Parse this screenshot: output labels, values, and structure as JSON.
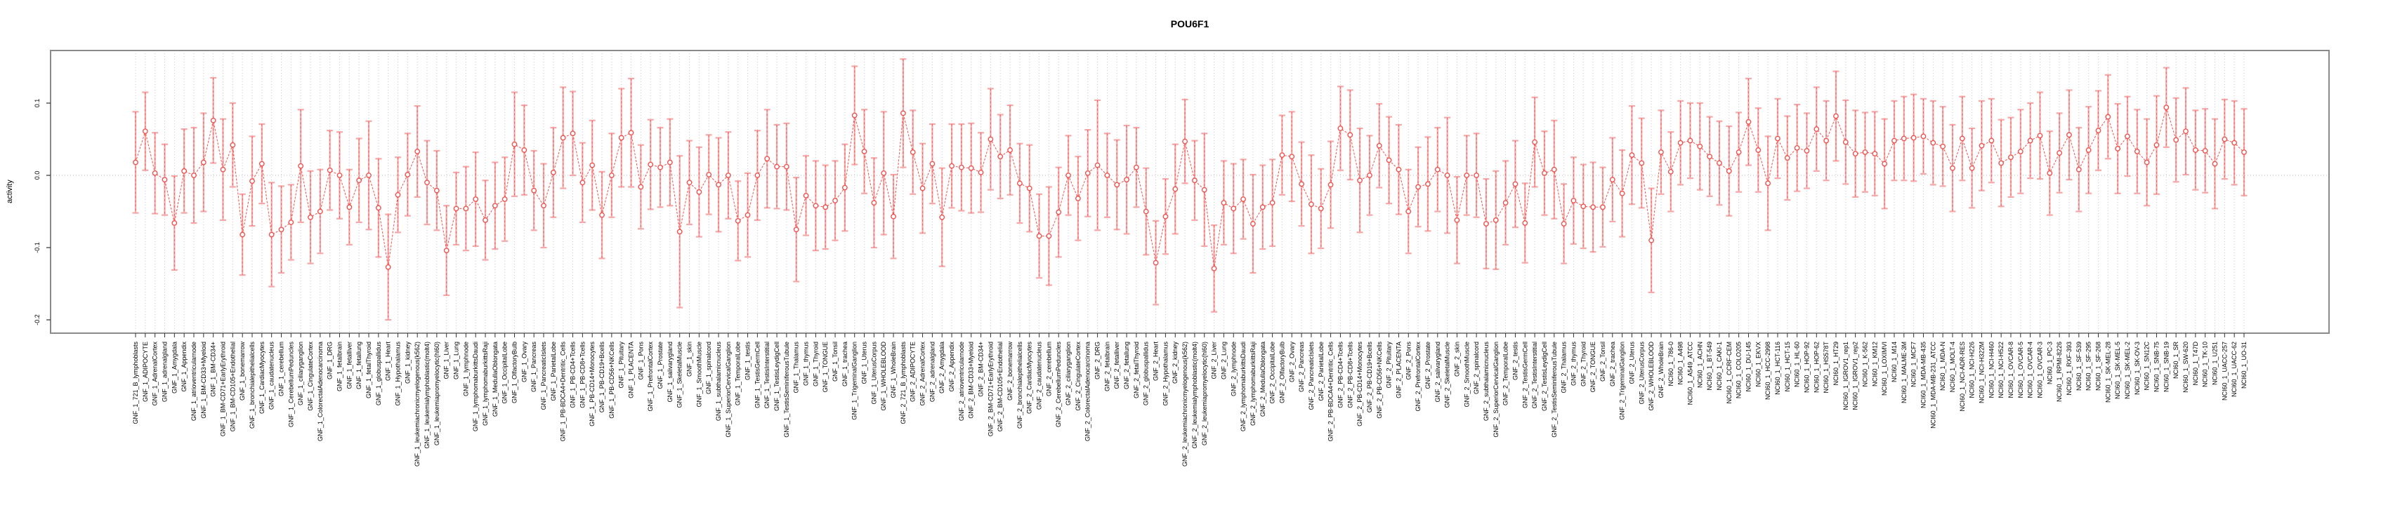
{
  "page": {
    "title": "POU6F1"
  },
  "axis": {
    "ylabel": "activity",
    "ytick_labels": [
      "0.1",
      "0.0",
      "-0.1",
      "-0.2"
    ]
  },
  "chart_data": {
    "type": "scatter",
    "title": "POU6F1",
    "xlabel": "",
    "ylabel": "activity",
    "ylim": [
      -0.218,
      0.173
    ],
    "yticks": [
      0.1,
      0.0,
      -0.1,
      -0.2
    ],
    "ytick_labels": [
      "0.1",
      "0.0",
      "-0.1",
      "-0.2"
    ],
    "grid": "dotted vertical line at every category; dotted horizontal line at y=0",
    "legend_position": "none",
    "marker": "open-circle",
    "line_style": "dashed-connecting-line",
    "error_bars": true,
    "colors": {
      "point": "#f0524f",
      "errorbar": "#f6a8a8",
      "grid": "#c8c8c8",
      "border": "#8a8a8a",
      "tick": "#333333",
      "text": "#000000",
      "background": "#ffffff"
    },
    "categories": [
      "GNF_1_721_B_lymphoblasts",
      "GNF_1_ADIPOCYTE",
      "GNF_1_AdrenalCortex",
      "GNF_1_adrenalgland",
      "GNF_1_Amygdala",
      "GNF_1_Appendix",
      "GNF_1_atrioventricularnode",
      "GNF_1_BM-CD33+Myeloid",
      "GNF_1_BM-CD34+",
      "GNF_1_BM-CD71+EarlyErythroid",
      "GNF_1_BM-CD105+Endothelial",
      "GNF_1_bonemarrow",
      "GNF_1_bronchialepithelialcells",
      "GNF_1_CardiacMyocytes",
      "GNF_1_caudatenucleus",
      "GNF_1_cerebellum",
      "GNF_1_CerebellumPeduncles",
      "GNF_1_ciliaryganglion",
      "GNF_1_CingulateCortex",
      "GNF_1_ColorectalAdenocarcinoma",
      "GNF_1_DRG",
      "GNF_1_fetalbrain",
      "GNF_1_fetalliver",
      "GNF_1_fetallung",
      "GNF_1_fetalThyroid",
      "GNF_1_globuspallidus",
      "GNF_1_Heart",
      "GNF_1_Hypothalamus",
      "GNF_1_kidney",
      "GNF_1_leukemiachronicmyelogenous(k562)",
      "GNF_1_leukemialymphoblastic(molt4)",
      "GNF_1_leukemiapromyelocytic(hl60)",
      "GNF_1_Liver",
      "GNF_1_Lung",
      "GNF_1_lymphnode",
      "GNF_1_lymphomaburkittsDaudi",
      "GNF_1_lymphomaburkittsRaji",
      "GNF_1_MedullaOblongata",
      "GNF_1_OccipitalLobe",
      "GNF_1_OlfactoryBulb",
      "GNF_1_Ovary",
      "GNF_1_Pancreas",
      "GNF_1_PancreaticIslets",
      "GNF_1_ParietalLobe",
      "GNF_1_PB-BDCA4+Dentritic_Cells",
      "GNF_1_PB-CD4+Tcells",
      "GNF_1_PB-CD8+Tcells",
      "GNF_1_PB-CD14+Monocytes",
      "GNF_1_PB-CD19+Bcells",
      "GNF_1_PB-CD56+NKCells",
      "GNF_1_Pituitary",
      "GNF_1_PLACENTA",
      "GNF_1_Pons",
      "GNF_1_PrefrontalCortex",
      "GNF_1_Prostate",
      "GNF_1_salivarygland",
      "GNF_1_SkeletalMuscle",
      "GNF_1_skin",
      "GNF_1_SmoothMuscle",
      "GNF_1_spinalcord",
      "GNF_1_subthalamicnucleus",
      "GNF_1_SuperiorCervicalGanglion",
      "GNF_1_TemporalLobe",
      "GNF_1_testis",
      "GNF_1_TestisGermCell",
      "GNF_1_TestisInterstitial",
      "GNF_1_TestisLeydigCell",
      "GNF_1_TestisSeminiferousTubule",
      "GNF_1_Thalamus",
      "GNF_1_thymus",
      "GNF_1_Thyroid",
      "GNF_1_TONGUE",
      "GNF_1_Tonsil",
      "GNF_1_trachea",
      "GNF_1_TrigeminalGanglion",
      "GNF_1_Uterus",
      "GNF_1_UterusCorpus",
      "GNF_1_WHOLEBLOOD",
      "GNF_1_WholeBrain",
      "GNF_2_721_B_lymphoblasts",
      "GNF_2_ADIPOCYTE",
      "GNF_2_AdrenalCortex",
      "GNF_2_adrenalgland",
      "GNF_2_Amygdala",
      "GNF_2_Appendix",
      "GNF_2_atrioventricularnode",
      "GNF_2_BM-CD33+Myeloid",
      "GNF_2_BM-CD34+",
      "GNF_2_BM-CD71+EarlyErythroid",
      "GNF_2_BM-CD105+Endothelial",
      "GNF_2_bonemarrow",
      "GNF_2_bronchialepithelialcells",
      "GNF_2_CardiacMyocytes",
      "GNF_2_caudatenucleus",
      "GNF_2_cerebellum",
      "GNF_2_CerebellumPeduncles",
      "GNF_2_ciliaryganglion",
      "GNF_2_CingulateCortex",
      "GNF_2_ColorectalAdenocarcinoma",
      "GNF_2_DRG",
      "GNF_2_fetalbrain",
      "GNF_2_fetalliver",
      "GNF_2_fetallung",
      "GNF_2_fetalThyroid",
      "GNF_2_globuspallidus",
      "GNF_2_Heart",
      "GNF_2_Hypothalamus",
      "GNF_2_kidney",
      "GNF_2_leukemiachronicmyelogenous(k562)",
      "GNF_2_leukemialymphoblastic(molt4)",
      "GNF_2_leukemiapromyelocytic(hl60)",
      "GNF_2_Liver",
      "GNF_2_Lung",
      "GNF_2_lymphnode",
      "GNF_2_lymphomaburkittsDaudi",
      "GNF_2_lymphomaburkittsRaji",
      "GNF_2_MedullaOblongata",
      "GNF_2_OccipitalLobe",
      "GNF_2_OlfactoryBulb",
      "GNF_2_Ovary",
      "GNF_2_Pancreas",
      "GNF_2_PancreaticIslets",
      "GNF_2_ParietalLobe",
      "GNF_2_PB-BDCA4+Dentritic_Cells",
      "GNF_2_PB-CD4+Tcells",
      "GNF_2_PB-CD8+Tcells",
      "GNF_2_PB-CD14+Monocytes",
      "GNF_2_PB-CD19+Bcells",
      "GNF_2_PB-CD56+NKCells",
      "GNF_2_Pituitary",
      "GNF_2_PLACENTA",
      "GNF_2_Pons",
      "GNF_2_PrefrontalCortex",
      "GNF_2_Prostate",
      "GNF_2_salivarygland",
      "GNF_2_SkeletalMuscle",
      "GNF_2_skin",
      "GNF_2_SmoothMuscle",
      "GNF_2_spinalcord",
      "GNF_2_subthalamicnucleus",
      "GNF_2_SuperiorCervicalGanglion",
      "GNF_2_TemporalLobe",
      "GNF_2_testis",
      "GNF_2_TestisGermCell",
      "GNF_2_TestisInterstitial",
      "GNF_2_TestisLeydigCell",
      "GNF_2_TestisSeminiferousTubule",
      "GNF_2_Thalamus",
      "GNF_2_thymus",
      "GNF_2_Thyroid",
      "GNF_2_TONGUE",
      "GNF_2_Tonsil",
      "GNF_2_trachea",
      "GNF_2_TrigeminalGanglion",
      "GNF_2_Uterus",
      "GNF_2_UterusCorpus",
      "GNF_2_WHOLEBLOOD",
      "GNF_2_WholeBrain",
      "NCI60_1_786-0",
      "NCI60_1_A498",
      "NCI60_1_A549_ATCC",
      "NCI60_1_ACHN",
      "NCI60_1_BT-549",
      "NCI60_1_CAKI-1",
      "NCI60_1_CCRF-CEM",
      "NCI60_1_COLO205",
      "NCI60_1_DU-145",
      "NCI60_1_EKVX",
      "NCI60_1_HCC-2998",
      "NCI60_1_HCT-116",
      "NCI60_1_HCT-15",
      "NCI60_1_HL-60",
      "NCI60_1_HOP-92",
      "NCI60_1_HOP-62",
      "NCI60_1_HS578T",
      "NCI60_1_HT29",
      "NCI60_1_IGROV1_rep1",
      "NCI60_1_IGROV1_rep2",
      "NCI60_1_K-562",
      "NCI60_1_KM12",
      "NCI60_1_LOXIMVI",
      "NCI60_1_M14",
      "NCI60_1_MALME-3M",
      "NCI60_1_MCF7",
      "NCI60_1_MDA-MB-435",
      "NCI60_1_MDA-MB-231_ATCC",
      "NCI60_1_MDA-N",
      "NCI60_1_MOLT-4",
      "NCI60_1_NCI-ADR-RES",
      "NCI60_1_NCI-H226",
      "NCI60_1_NCI-H322M",
      "NCI60_1_NCI-H460",
      "NCI60_1_NCI-H522",
      "NCI60_1_OVCAR-8",
      "NCI60_1_OVCAR-5",
      "NCI60_1_OVCAR-4",
      "NCI60_1_OVCAR-3",
      "NCI60_1_PC-3",
      "NCI60_1_RPMI-8226",
      "NCI60_1_RXF-393",
      "NCI60_1_SF-539",
      "NCI60_1_SF-295",
      "NCI60_1_SF-268",
      "NCI60_1_SK-MEL-28",
      "NCI60_1_SK-MEL-5",
      "NCI60_1_SK-MEL-2",
      "NCI60_1_SK-OV-3",
      "NCI60_1_SN12C",
      "NCI60_1_SNB-75",
      "NCI60_1_SNB-19",
      "NCI60_1_SR",
      "NCI60_1_SW-620",
      "NCI60_1_T47D",
      "NCI60_1_TK-10",
      "NCI60_1_U251",
      "NCI60_1_UACC-257",
      "NCI60_1_UACC-62",
      "NCI60_1_UO-31"
    ],
    "values": [
      0.018,
      0.061,
      0.003,
      -0.006,
      -0.066,
      0.006,
      0.0,
      0.018,
      0.076,
      0.008,
      0.042,
      -0.082,
      -0.008,
      0.016,
      -0.082,
      -0.075,
      -0.065,
      0.013,
      -0.058,
      -0.05,
      0.007,
      0.0,
      -0.044,
      -0.007,
      0.0,
      -0.045,
      -0.127,
      -0.027,
      0.001,
      0.033,
      -0.01,
      -0.021,
      -0.104,
      -0.046,
      -0.046,
      -0.033,
      -0.062,
      -0.042,
      -0.033,
      0.043,
      0.035,
      -0.021,
      -0.042,
      0.004,
      0.052,
      0.058,
      -0.01,
      0.014,
      -0.055,
      0.0,
      0.052,
      0.059,
      -0.016,
      0.015,
      0.011,
      0.018,
      -0.078,
      -0.01,
      -0.023,
      0.001,
      -0.013,
      0.0,
      -0.063,
      -0.055,
      0.0,
      0.023,
      0.012,
      0.012,
      -0.075,
      -0.028,
      -0.042,
      -0.044,
      -0.035,
      -0.017,
      0.083,
      0.033,
      -0.038,
      0.003,
      -0.057,
      0.086,
      0.032,
      -0.018,
      0.016,
      -0.058,
      0.013,
      0.011,
      0.01,
      0.004,
      0.05,
      0.026,
      0.035,
      -0.011,
      -0.018,
      -0.084,
      -0.084,
      -0.051,
      0.0,
      -0.032,
      0.003,
      0.014,
      0.0,
      -0.013,
      -0.006,
      0.011,
      -0.05,
      -0.121,
      -0.057,
      -0.019,
      0.047,
      -0.007,
      -0.02,
      -0.129,
      -0.038,
      -0.046,
      -0.033,
      -0.067,
      -0.044,
      -0.038,
      0.028,
      0.026,
      -0.012,
      -0.04,
      -0.046,
      -0.013,
      0.065,
      0.056,
      -0.007,
      0.0,
      0.041,
      0.021,
      0.008,
      -0.05,
      -0.016,
      -0.012,
      0.008,
      0.0,
      -0.062,
      0.0,
      0.0,
      -0.067,
      -0.062,
      -0.038,
      -0.012,
      -0.066,
      0.046,
      0.003,
      0.008,
      -0.067,
      -0.035,
      -0.043,
      -0.044,
      -0.044,
      -0.006,
      -0.025,
      0.028,
      0.017,
      -0.09,
      0.032,
      0.005,
      0.045,
      0.048,
      0.04,
      0.026,
      0.017,
      0.006,
      0.032,
      0.074,
      0.035,
      -0.011,
      0.051,
      0.024,
      0.038,
      0.034,
      0.064,
      0.048,
      0.082,
      0.046,
      0.03,
      0.032,
      0.03,
      0.016,
      0.048,
      0.051,
      0.052,
      0.054,
      0.045,
      0.04,
      0.01,
      0.051,
      0.01,
      0.041,
      0.048,
      0.017,
      0.025,
      0.033,
      0.048,
      0.055,
      0.003,
      0.031,
      0.056,
      0.008,
      0.035,
      0.062,
      0.081,
      0.037,
      0.054,
      0.033,
      0.018,
      0.042,
      0.094,
      0.049,
      0.061,
      0.035,
      0.034,
      0.016,
      0.05,
      0.045,
      0.032
    ],
    "errors": [
      0.07,
      0.054,
      0.056,
      0.049,
      0.065,
      0.058,
      0.066,
      0.068,
      0.059,
      0.07,
      0.058,
      0.056,
      0.062,
      0.055,
      0.072,
      0.06,
      0.052,
      0.078,
      0.064,
      0.058,
      0.055,
      0.06,
      0.052,
      0.058,
      0.075,
      0.068,
      0.073,
      0.052,
      0.057,
      0.063,
      0.058,
      0.055,
      0.062,
      0.05,
      0.058,
      0.065,
      0.055,
      0.06,
      0.058,
      0.072,
      0.062,
      0.055,
      0.058,
      0.062,
      0.07,
      0.058,
      0.055,
      0.062,
      0.06,
      0.058,
      0.068,
      0.075,
      0.058,
      0.062,
      0.055,
      0.06,
      0.105,
      0.058,
      0.062,
      0.055,
      0.065,
      0.06,
      0.055,
      0.058,
      0.062,
      0.068,
      0.058,
      0.06,
      0.072,
      0.055,
      0.062,
      0.058,
      0.055,
      0.06,
      0.068,
      0.058,
      0.062,
      0.085,
      0.058,
      0.075,
      0.058,
      0.062,
      0.055,
      0.068,
      0.058,
      0.06,
      0.062,
      0.055,
      0.07,
      0.058,
      0.062,
      0.055,
      0.06,
      0.058,
      0.068,
      0.062,
      0.055,
      0.058,
      0.06,
      0.09,
      0.058,
      0.062,
      0.075,
      0.055,
      0.06,
      0.058,
      0.052,
      0.062,
      0.058,
      0.055,
      0.078,
      0.06,
      0.058,
      0.062,
      0.055,
      0.068,
      0.058,
      0.06,
      0.055,
      0.062,
      0.058,
      0.068,
      0.055,
      0.06,
      0.058,
      0.062,
      0.072,
      0.055,
      0.058,
      0.06,
      0.062,
      0.058,
      0.055,
      0.065,
      0.058,
      0.08,
      0.06,
      0.055,
      0.058,
      0.062,
      0.068,
      0.058,
      0.06,
      0.055,
      0.062,
      0.058,
      0.068,
      0.055,
      0.06,
      0.058,
      0.062,
      0.055,
      0.058,
      0.06,
      0.068,
      0.062,
      0.072,
      0.058,
      0.055,
      0.058,
      0.052,
      0.06,
      0.055,
      0.058,
      0.062,
      0.055,
      0.06,
      0.058,
      0.065,
      0.055,
      0.058,
      0.06,
      0.052,
      0.058,
      0.055,
      0.062,
      0.058,
      0.06,
      0.055,
      0.058,
      0.062,
      0.055,
      0.058,
      0.06,
      0.052,
      0.058,
      0.055,
      0.06,
      0.058,
      0.055,
      0.062,
      0.058,
      0.06,
      0.055,
      0.058,
      0.052,
      0.06,
      0.058,
      0.055,
      0.062,
      0.058,
      0.06,
      0.055,
      0.058,
      0.062,
      0.055,
      0.058,
      0.06,
      0.068,
      0.055,
      0.058,
      0.06,
      0.055,
      0.058,
      0.062,
      0.055,
      0.058,
      0.06
    ]
  }
}
